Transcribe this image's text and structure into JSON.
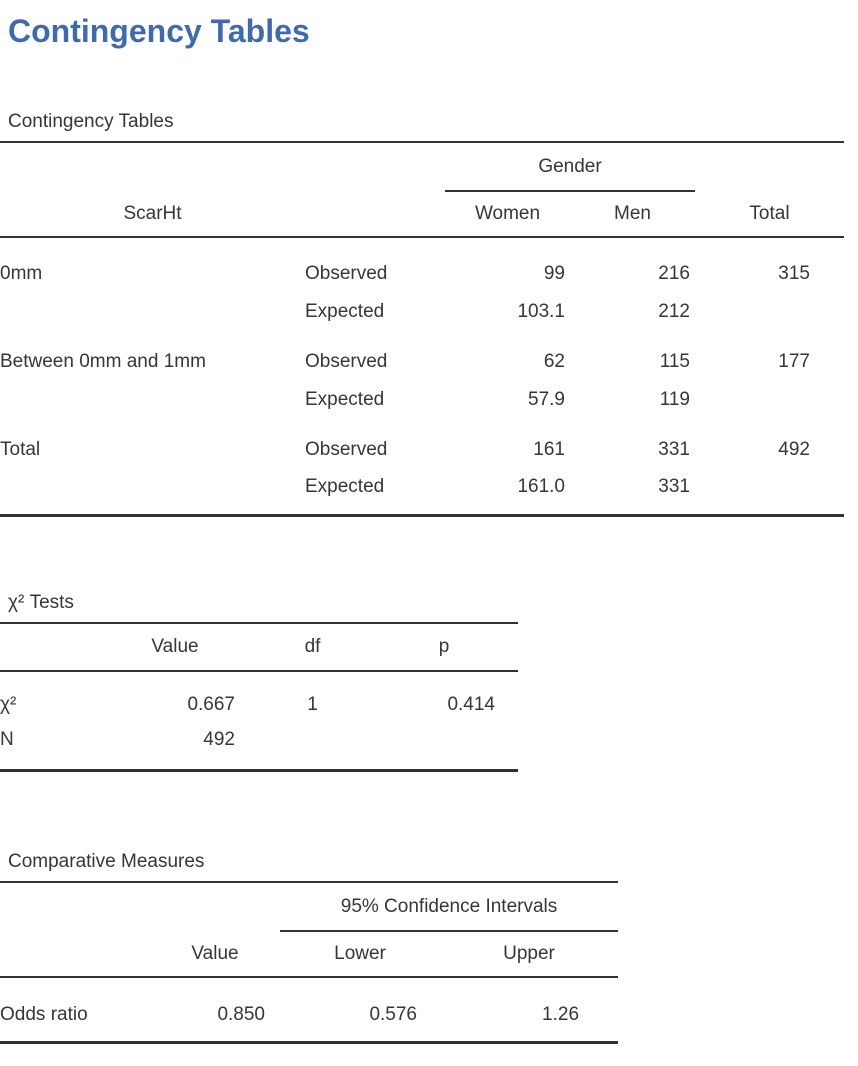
{
  "page": {
    "title": "Contingency Tables"
  },
  "colors": {
    "title_blue": "#3e6bb0",
    "text": "#363636",
    "rule": "#333333"
  },
  "contingency": {
    "caption": "Contingency Tables",
    "row_variable": "ScarHt",
    "column_group": "Gender",
    "column_headers": {
      "women": "Women",
      "men": "Men",
      "total": "Total"
    },
    "measure_labels": {
      "observed": "Observed",
      "expected": "Expected"
    },
    "rows": [
      {
        "label": "0mm",
        "observed": {
          "women": "99",
          "men": "216",
          "total": "315"
        },
        "expected": {
          "women": "103.1",
          "men": "212"
        }
      },
      {
        "label": "Between 0mm and 1mm",
        "observed": {
          "women": "62",
          "men": "115",
          "total": "177"
        },
        "expected": {
          "women": "57.9",
          "men": "119"
        }
      },
      {
        "label": "Total",
        "observed": {
          "women": "161",
          "men": "331",
          "total": "492"
        },
        "expected": {
          "women": "161.0",
          "men": "331"
        }
      }
    ]
  },
  "chi_square": {
    "caption": "χ² Tests",
    "column_headers": {
      "value": "Value",
      "df": "df",
      "p": "p"
    },
    "rows": [
      {
        "label": "χ²",
        "value": "0.667",
        "df": "1",
        "p": "0.414"
      },
      {
        "label": "N",
        "value": "492"
      }
    ]
  },
  "comparative": {
    "caption": "Comparative Measures",
    "ci_group": "95% Confidence Intervals",
    "column_headers": {
      "value": "Value",
      "lower": "Lower",
      "upper": "Upper"
    },
    "rows": [
      {
        "label": "Odds ratio",
        "value": "0.850",
        "lower": "0.576",
        "upper": "1.26"
      }
    ]
  }
}
